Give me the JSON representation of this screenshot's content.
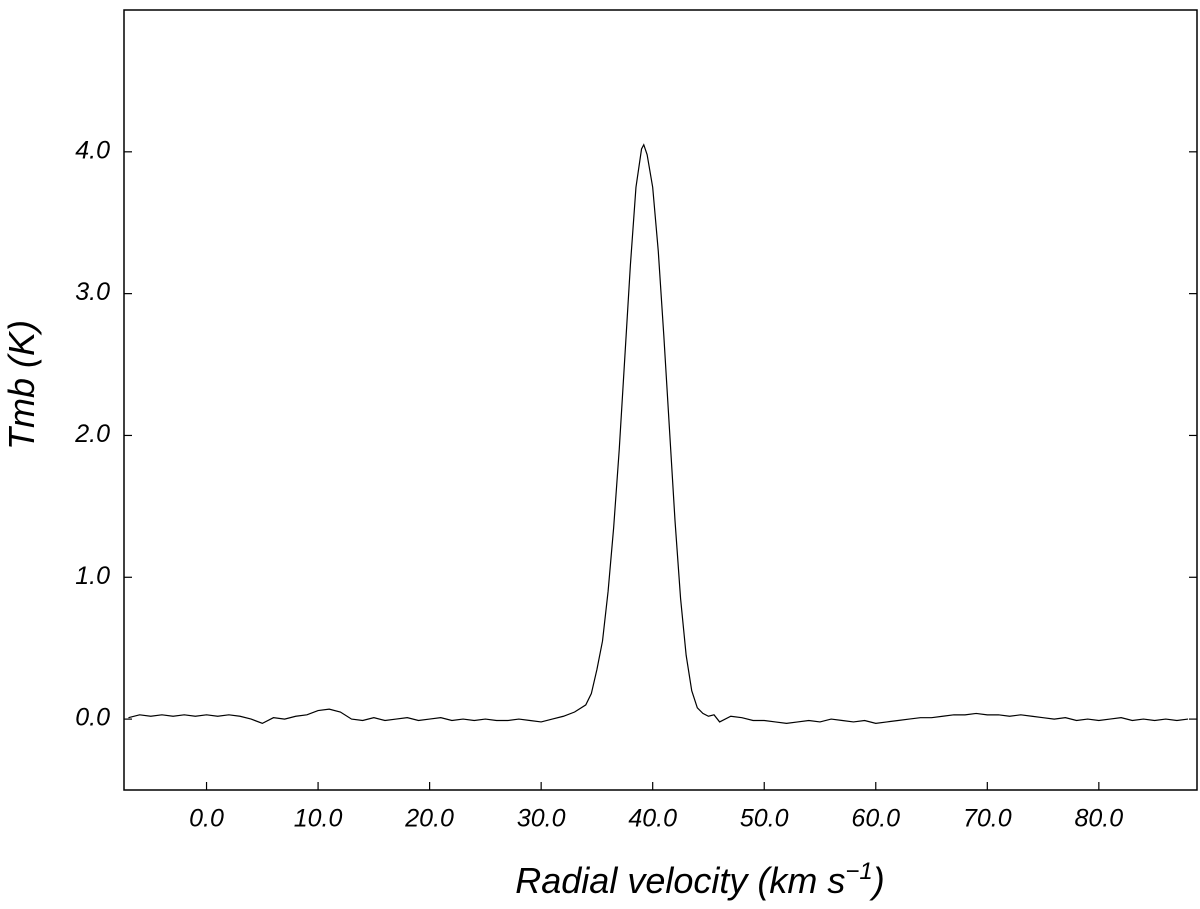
{
  "chart_data": {
    "type": "line",
    "y_label": "Tmb (K)",
    "x_label": {
      "text": "Radial velocity (km  s",
      "superscript": "−1",
      "close": ")"
    },
    "color": "#000000",
    "xlim": [
      -7.4,
      88.8
    ],
    "ylim": [
      -0.5,
      5.0
    ],
    "xticks": [
      {
        "value": 0,
        "label": "0.0"
      },
      {
        "value": 10,
        "label": "10.0"
      },
      {
        "value": 20,
        "label": "20.0"
      },
      {
        "value": 30,
        "label": "30.0"
      },
      {
        "value": 40,
        "label": "40.0"
      },
      {
        "value": 50,
        "label": "50.0"
      },
      {
        "value": 60,
        "label": "60.0"
      },
      {
        "value": 70,
        "label": "70.0"
      },
      {
        "value": 80,
        "label": "80.0"
      }
    ],
    "yticks": [
      {
        "value": 0,
        "label": "0.0"
      },
      {
        "value": 1,
        "label": "1.0"
      },
      {
        "value": 2,
        "label": "2.0"
      },
      {
        "value": 3,
        "label": "3.0"
      },
      {
        "value": 4,
        "label": "4.0"
      }
    ],
    "x": [
      -7,
      -6,
      -5,
      -4,
      -3,
      -2,
      -1,
      0,
      1,
      2,
      3,
      4,
      5,
      6,
      7,
      8,
      9,
      10,
      11,
      12,
      13,
      14,
      15,
      16,
      17,
      18,
      19,
      20,
      21,
      22,
      23,
      24,
      25,
      26,
      27,
      28,
      29,
      30,
      31,
      32,
      33,
      34,
      34.5,
      35,
      35.5,
      36,
      36.5,
      37,
      37.5,
      38,
      38.5,
      39,
      39.2,
      39.5,
      40,
      40.5,
      41,
      41.5,
      42,
      42.5,
      43,
      43.5,
      44,
      44.5,
      45,
      45.5,
      46,
      47,
      48,
      49,
      50,
      51,
      52,
      53,
      54,
      55,
      56,
      57,
      58,
      59,
      60,
      61,
      62,
      63,
      64,
      65,
      66,
      67,
      68,
      69,
      70,
      71,
      72,
      73,
      74,
      75,
      76,
      77,
      78,
      79,
      80,
      81,
      82,
      83,
      84,
      85,
      86,
      87,
      88
    ],
    "values": [
      0.01,
      0.03,
      0.02,
      0.03,
      0.02,
      0.03,
      0.02,
      0.03,
      0.02,
      0.03,
      0.02,
      0.0,
      -0.03,
      0.01,
      0.0,
      0.02,
      0.03,
      0.06,
      0.07,
      0.05,
      0.0,
      -0.01,
      0.01,
      -0.01,
      0.0,
      0.01,
      -0.01,
      0.0,
      0.01,
      -0.01,
      0.0,
      -0.01,
      0.0,
      -0.01,
      -0.01,
      0.0,
      -0.01,
      -0.02,
      0.0,
      0.02,
      0.05,
      0.1,
      0.18,
      0.35,
      0.55,
      0.9,
      1.35,
      1.9,
      2.55,
      3.2,
      3.75,
      4.02,
      4.05,
      3.98,
      3.75,
      3.3,
      2.7,
      2.05,
      1.4,
      0.85,
      0.45,
      0.2,
      0.08,
      0.04,
      0.02,
      0.03,
      -0.02,
      0.02,
      0.01,
      -0.01,
      -0.01,
      -0.02,
      -0.03,
      -0.02,
      -0.01,
      -0.02,
      0.0,
      -0.01,
      -0.02,
      -0.01,
      -0.03,
      -0.02,
      -0.01,
      0.0,
      0.01,
      0.01,
      0.02,
      0.03,
      0.03,
      0.04,
      0.03,
      0.03,
      0.02,
      0.03,
      0.02,
      0.01,
      0.0,
      0.01,
      -0.01,
      0.0,
      -0.01,
      0.0,
      0.01,
      -0.01,
      0.0,
      -0.01,
      0.0,
      -0.01,
      0.0
    ]
  }
}
